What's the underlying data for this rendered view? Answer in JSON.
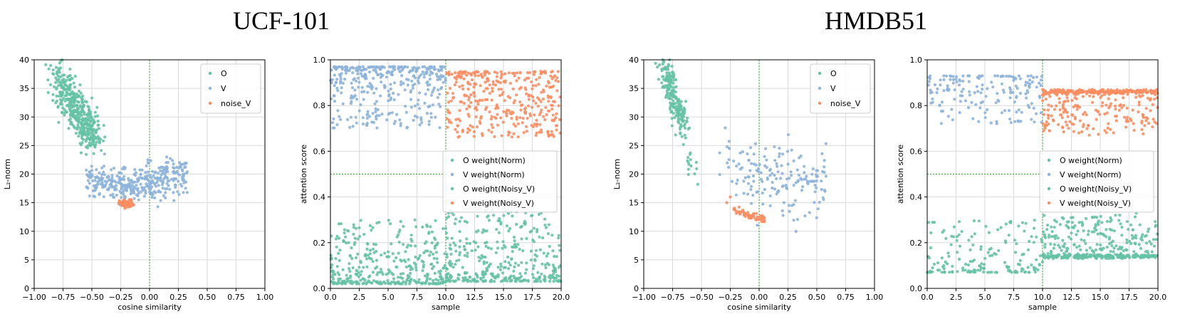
{
  "section_titles": {
    "left": "UCF-101",
    "right": "HMDB51"
  },
  "colors": {
    "O": "#66c2a5",
    "V": "#8db4d9",
    "noise_V": "#fc8d62",
    "grid": "#d9d9d9",
    "dashed": "#2ca02c"
  },
  "chart_data": [
    {
      "id": "ucf-l2",
      "type": "scatter",
      "xlabel": "cosine similarity",
      "ylabel": "L₂-norm",
      "xlim": [
        -1.0,
        1.0
      ],
      "ylim": [
        0,
        40
      ],
      "xticks": [
        -1.0,
        -0.75,
        -0.5,
        -0.25,
        0.0,
        0.25,
        0.5,
        0.75,
        1.0
      ],
      "xtick_labels": [
        "−1.00",
        "−0.75",
        "−0.50",
        "−0.25",
        "0.00",
        "0.25",
        "0.50",
        "0.75",
        "1.00"
      ],
      "yticks": [
        0,
        5,
        10,
        15,
        20,
        25,
        30,
        35,
        40
      ],
      "ytick_labels": [
        "0",
        "5",
        "10",
        "15",
        "20",
        "25",
        "30",
        "35",
        "40"
      ],
      "grid": true,
      "vline_x": 0.0,
      "legend": {
        "placement": "top-right",
        "entries": [
          "O",
          "V",
          "noise_V"
        ]
      },
      "series": [
        {
          "name": "O",
          "color": "#66c2a5",
          "gen": {
            "kind": "band",
            "n": 420,
            "x0": -0.82,
            "y0": 38,
            "x1": -0.48,
            "y1": 26,
            "jx": 0.05,
            "jy": 1.5
          }
        },
        {
          "name": "V",
          "color": "#8db4d9",
          "gen": {
            "kind": "vshape",
            "n": 380,
            "xmin": -0.55,
            "xmax": 0.33,
            "cx": -0.2,
            "ybase": 17.5,
            "slope": 5,
            "jy": 1.6
          }
        },
        {
          "name": "noise_V",
          "color": "#fc8d62",
          "gen": {
            "kind": "blob",
            "n": 70,
            "cx": -0.2,
            "cy": 14.8,
            "sx": 0.03,
            "sy": 0.35
          }
        }
      ]
    },
    {
      "id": "ucf-att",
      "type": "scatter",
      "xlabel": "sample",
      "ylabel": "attention score",
      "xlim": [
        0,
        20
      ],
      "ylim": [
        0,
        1.0
      ],
      "xticks": [
        0,
        2.5,
        5,
        7.5,
        10,
        12.5,
        15,
        17.5,
        20
      ],
      "xtick_labels": [
        "0.0",
        "2.5",
        "5.0",
        "7.5",
        "10.0",
        "12.5",
        "15.0",
        "17.5",
        "20.0"
      ],
      "yticks": [
        0,
        0.2,
        0.4,
        0.6,
        0.8,
        1.0
      ],
      "ytick_labels": [
        "0.0",
        "0.2",
        "0.4",
        "0.6",
        "0.8",
        "1.0"
      ],
      "grid": true,
      "vline_x": 10,
      "hline_y": 0.5,
      "hline_xmax": 10,
      "legend": {
        "placement": "center-right",
        "entries": [
          "O weight(Norm)",
          "V weight(Norm)",
          "O weight(Noisy_V)",
          "V weight(Noisy_V)"
        ]
      },
      "series": [
        {
          "name": "O weight(Norm)",
          "color": "#66c2a5",
          "gen": {
            "kind": "uniform",
            "n": 360,
            "xmin": 0,
            "xmax": 10,
            "ymin": 0.02,
            "ymax": 0.3,
            "skew": 0.1
          }
        },
        {
          "name": "V weight(Norm)",
          "color": "#8db4d9",
          "gen": {
            "kind": "uniform",
            "n": 360,
            "xmin": 0,
            "xmax": 10,
            "ymin": 0.7,
            "ymax": 0.97,
            "skew": 0.9
          }
        },
        {
          "name": "O weight(Noisy_V)",
          "color": "#66c2a5",
          "gen": {
            "kind": "uniform",
            "n": 360,
            "xmin": 10,
            "xmax": 20,
            "ymin": 0.03,
            "ymax": 0.34,
            "skew": 0.15
          }
        },
        {
          "name": "V weight(Noisy_V)",
          "color": "#fc8d62",
          "gen": {
            "kind": "uniform",
            "n": 360,
            "xmin": 10,
            "xmax": 20,
            "ymin": 0.66,
            "ymax": 0.95,
            "skew": 0.6
          }
        }
      ]
    },
    {
      "id": "hmdb-l2",
      "type": "scatter",
      "xlabel": "cosine similarity",
      "ylabel": "L₂-norm",
      "xlim": [
        -1.0,
        1.0
      ],
      "ylim": [
        0,
        40
      ],
      "xticks": [
        -1.0,
        -0.75,
        -0.5,
        -0.25,
        0.0,
        0.25,
        0.5,
        0.75,
        1.0
      ],
      "xtick_labels": [
        "−1.00",
        "−0.75",
        "−0.50",
        "−0.25",
        "0.00",
        "0.25",
        "0.50",
        "0.75",
        "1.00"
      ],
      "yticks": [
        0,
        5,
        10,
        15,
        20,
        25,
        30,
        35,
        40
      ],
      "ytick_labels": [
        "0",
        "5",
        "10",
        "15",
        "20",
        "25",
        "30",
        "35",
        "40"
      ],
      "grid": true,
      "vline_x": 0.0,
      "legend": {
        "placement": "top-right",
        "entries": [
          "O",
          "V",
          "noise_V"
        ]
      },
      "series": [
        {
          "name": "O",
          "color": "#66c2a5",
          "gen": {
            "kind": "band",
            "n": 200,
            "x0": -0.84,
            "y0": 40,
            "x1": -0.65,
            "y1": 28,
            "jx": 0.03,
            "jy": 1.2,
            "tail": [
              [
                -0.62,
                24
              ],
              [
                -0.55,
                20
              ]
            ]
          }
        },
        {
          "name": "V",
          "color": "#8db4d9",
          "gen": {
            "kind": "cloud",
            "n": 170,
            "xmin": -0.35,
            "xmax": 0.58,
            "ybase": 19,
            "jy": 3.0
          }
        },
        {
          "name": "noise_V",
          "color": "#fc8d62",
          "gen": {
            "kind": "curve",
            "n": 55,
            "x0": -0.22,
            "y0": 14.2,
            "x1": 0.05,
            "y1": 12.2,
            "jy": 0.35,
            "extra": [
              [
                -0.28,
                15
              ],
              [
                -0.25,
                16
              ]
            ]
          }
        }
      ]
    },
    {
      "id": "hmdb-att",
      "type": "scatter",
      "xlabel": "sample",
      "ylabel": "attention score",
      "xlim": [
        0,
        20
      ],
      "ylim": [
        0,
        1.0
      ],
      "xticks": [
        0,
        2.5,
        5,
        7.5,
        10,
        12.5,
        15,
        17.5,
        20
      ],
      "xtick_labels": [
        "0.0",
        "2.5",
        "5.0",
        "7.5",
        "10.0",
        "12.5",
        "15.0",
        "17.5",
        "20.0"
      ],
      "yticks": [
        0,
        0.2,
        0.4,
        0.6,
        0.8,
        1.0
      ],
      "ytick_labels": [
        "0.0",
        "0.2",
        "0.4",
        "0.6",
        "0.8",
        "1.0"
      ],
      "grid": true,
      "vline_x": 10,
      "hline_y": 0.5,
      "hline_xmax": 10,
      "legend": {
        "placement": "center-right",
        "entries": [
          "O weight(Norm)",
          "V weight(Norm)",
          "O weight(Noisy_V)",
          "V weight(Noisy_V)"
        ]
      },
      "series": [
        {
          "name": "O weight(Norm)",
          "color": "#66c2a5",
          "gen": {
            "kind": "uniform",
            "n": 170,
            "xmin": 0,
            "xmax": 10,
            "ymin": 0.07,
            "ymax": 0.3,
            "skew": 0.1
          }
        },
        {
          "name": "V weight(Norm)",
          "color": "#8db4d9",
          "gen": {
            "kind": "uniform",
            "n": 170,
            "xmin": 0,
            "xmax": 10,
            "ymin": 0.72,
            "ymax": 0.93,
            "skew": 0.85
          }
        },
        {
          "name": "O weight(Noisy_V)",
          "color": "#66c2a5",
          "gen": {
            "kind": "floor",
            "n": 420,
            "xmin": 10,
            "xmax": 20,
            "ymin": 0.13,
            "ymax": 0.33,
            "floor": 0.14
          }
        },
        {
          "name": "V weight(Noisy_V)",
          "color": "#fc8d62",
          "gen": {
            "kind": "ceiling",
            "n": 420,
            "xmin": 10,
            "xmax": 20,
            "ymin": 0.67,
            "ymax": 0.87,
            "ceil": 0.86
          }
        }
      ]
    }
  ]
}
